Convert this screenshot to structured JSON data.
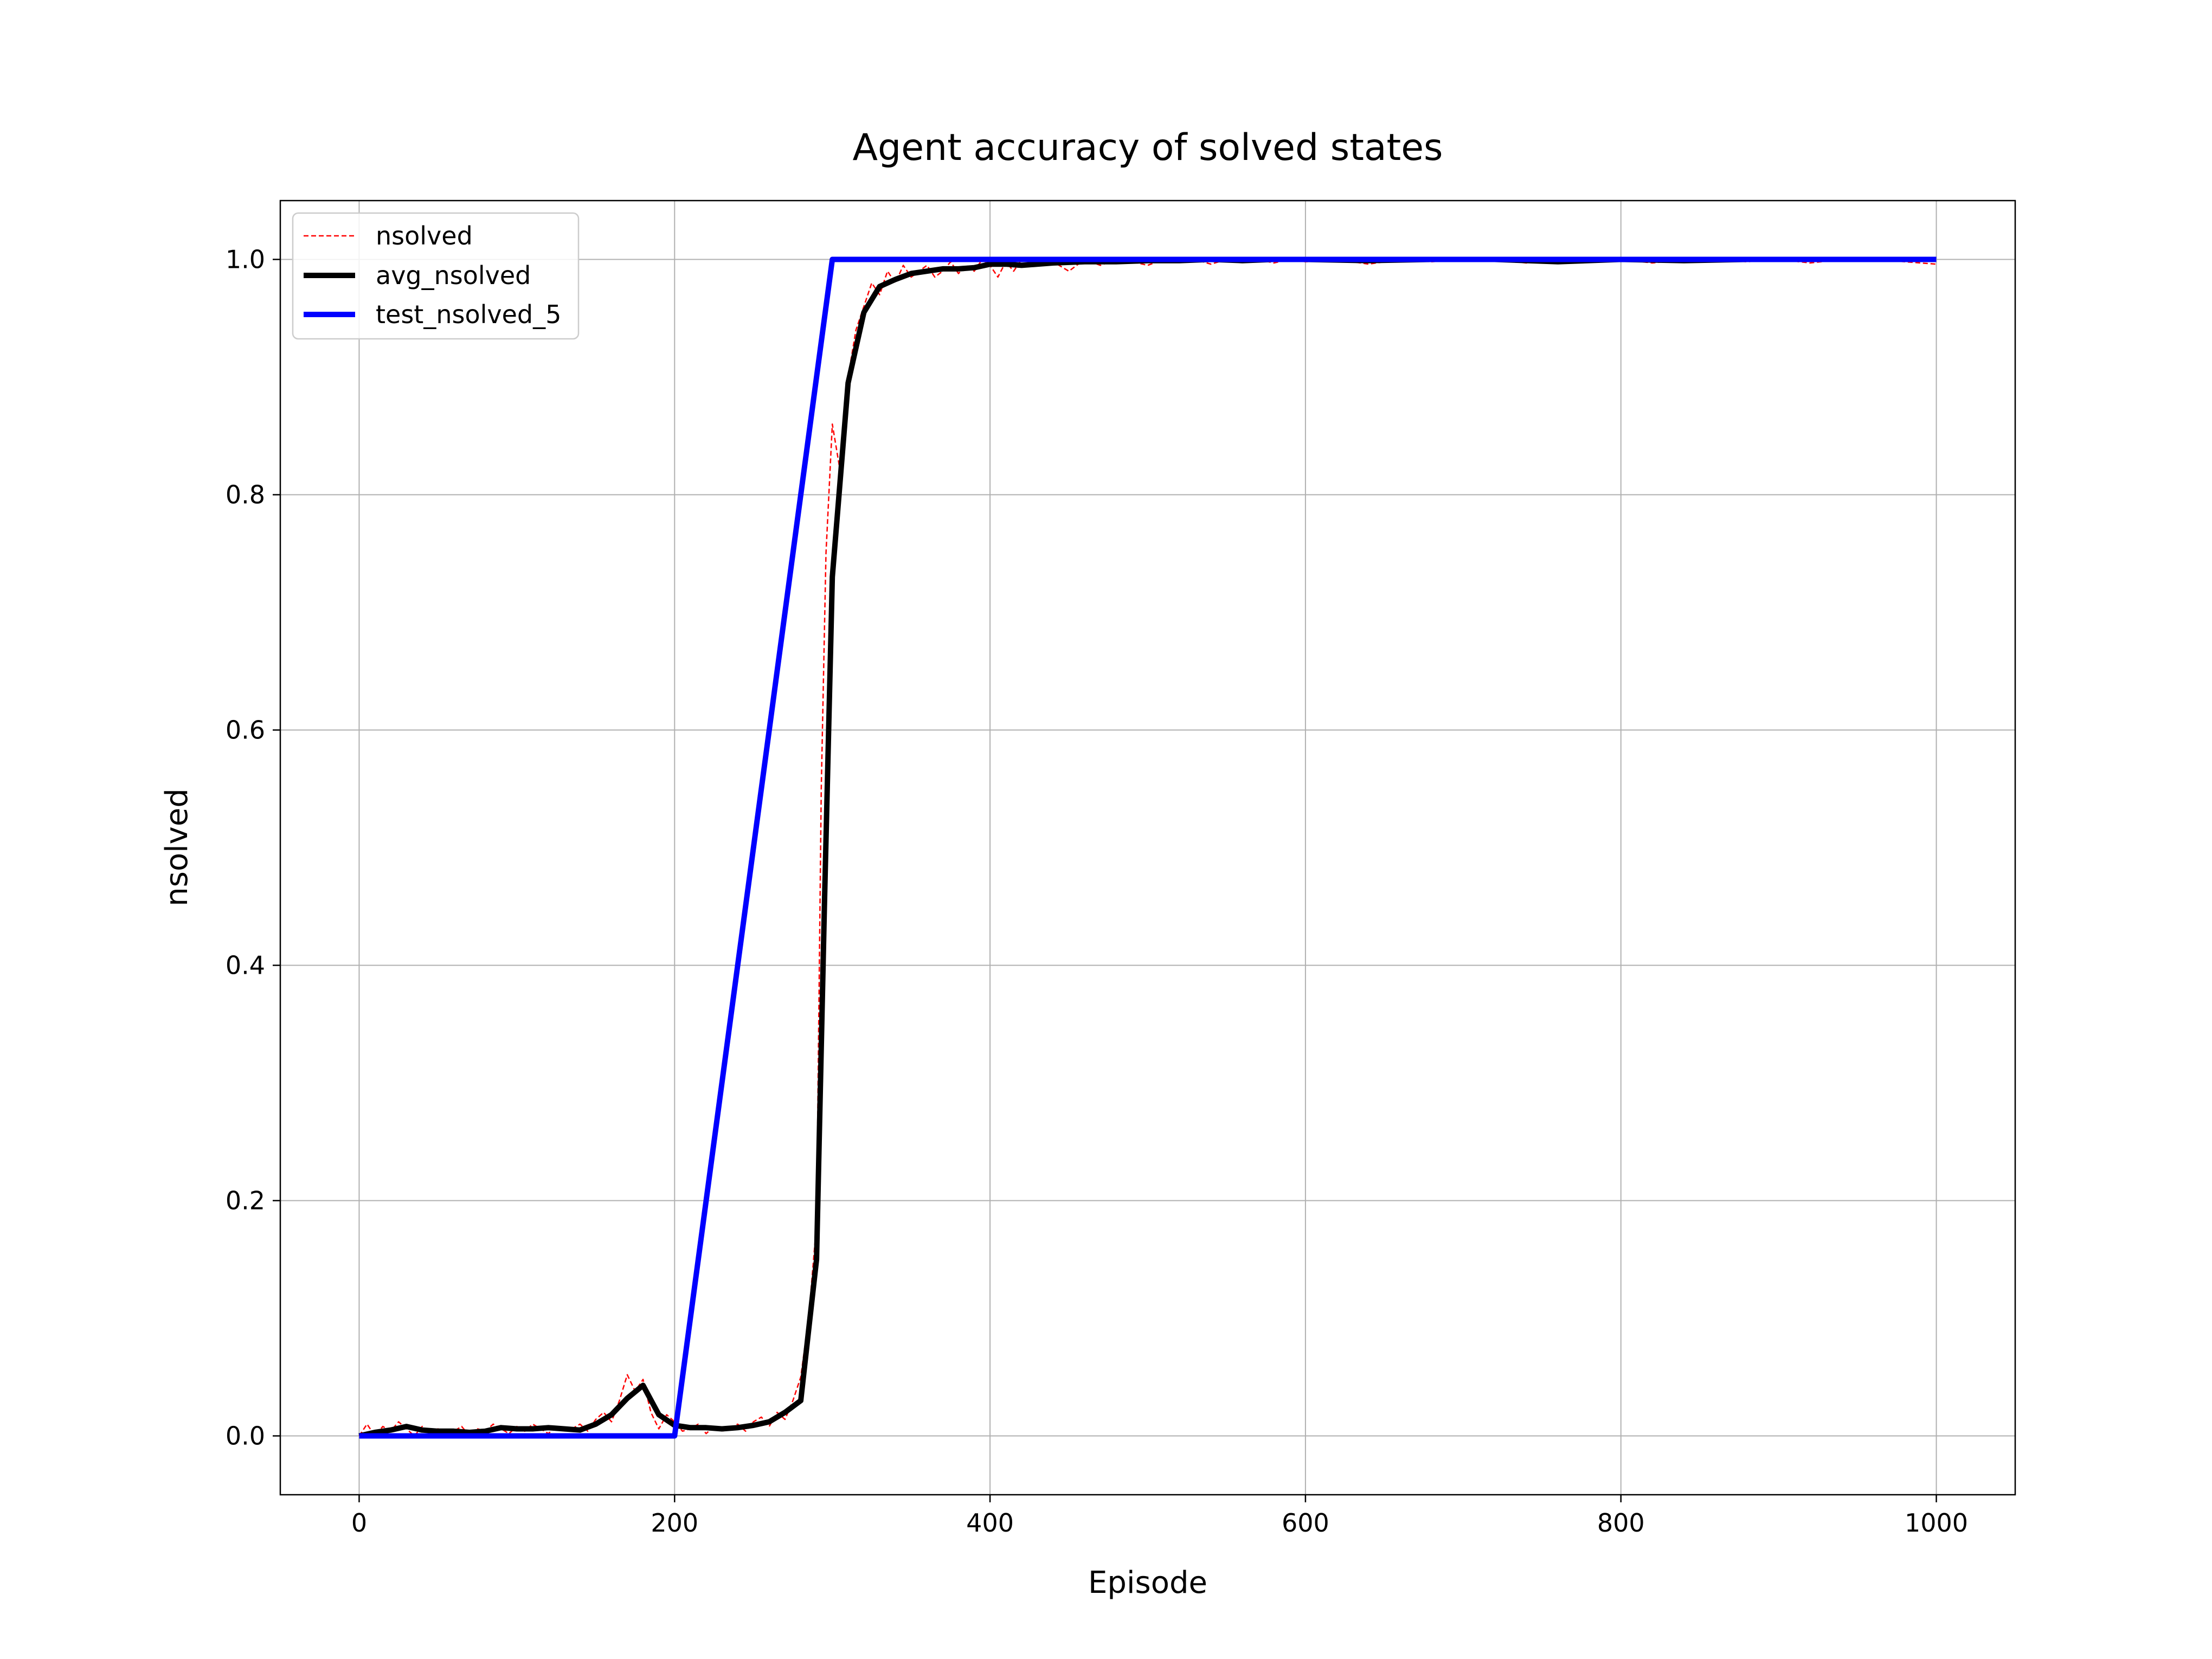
{
  "chart_data": {
    "type": "line",
    "title": "Agent accuracy of solved states",
    "xlabel": "Episode",
    "ylabel": "nsolved",
    "xlim": [
      -50,
      1050
    ],
    "ylim": [
      -0.05,
      1.05
    ],
    "xticks": [
      0,
      200,
      400,
      600,
      800,
      1000
    ],
    "yticks": [
      0.0,
      0.2,
      0.4,
      0.6,
      0.8,
      1.0
    ],
    "xtick_labels": [
      "0",
      "200",
      "400",
      "600",
      "800",
      "1000"
    ],
    "ytick_labels": [
      "0.0",
      "0.2",
      "0.4",
      "0.6",
      "0.8",
      "1.0"
    ],
    "grid": true,
    "legend_position": "upper-left",
    "series": [
      {
        "name": "nsolved",
        "color": "#ff0000",
        "style": "dashed",
        "x": [
          0,
          5,
          10,
          15,
          20,
          25,
          30,
          35,
          40,
          45,
          50,
          55,
          60,
          65,
          70,
          75,
          80,
          85,
          90,
          95,
          100,
          105,
          110,
          115,
          120,
          125,
          130,
          135,
          140,
          145,
          150,
          155,
          160,
          165,
          170,
          175,
          180,
          185,
          190,
          195,
          200,
          205,
          210,
          215,
          220,
          225,
          230,
          235,
          240,
          245,
          250,
          255,
          260,
          265,
          270,
          275,
          280,
          285,
          290,
          293,
          296,
          300,
          305,
          310,
          315,
          320,
          325,
          330,
          335,
          340,
          345,
          350,
          355,
          360,
          365,
          370,
          375,
          380,
          385,
          390,
          395,
          400,
          405,
          410,
          415,
          420,
          430,
          440,
          450,
          460,
          470,
          480,
          490,
          500,
          510,
          520,
          530,
          540,
          550,
          560,
          570,
          580,
          590,
          600,
          620,
          640,
          660,
          680,
          700,
          720,
          740,
          760,
          780,
          800,
          820,
          840,
          860,
          880,
          900,
          920,
          940,
          960,
          980,
          1000
        ],
        "y": [
          0.0,
          0.01,
          0.0,
          0.008,
          0.004,
          0.012,
          0.006,
          0.0,
          0.008,
          0.002,
          0.006,
          0.0,
          0.004,
          0.008,
          0.0,
          0.006,
          0.004,
          0.01,
          0.006,
          0.002,
          0.008,
          0.004,
          0.01,
          0.006,
          0.002,
          0.008,
          0.004,
          0.006,
          0.01,
          0.004,
          0.014,
          0.02,
          0.012,
          0.03,
          0.052,
          0.038,
          0.048,
          0.02,
          0.006,
          0.018,
          0.012,
          0.004,
          0.006,
          0.01,
          0.002,
          0.008,
          0.004,
          0.006,
          0.01,
          0.004,
          0.012,
          0.016,
          0.008,
          0.02,
          0.014,
          0.03,
          0.05,
          0.1,
          0.18,
          0.55,
          0.75,
          0.86,
          0.82,
          0.9,
          0.94,
          0.96,
          0.98,
          0.97,
          0.99,
          0.98,
          0.995,
          0.985,
          0.99,
          0.995,
          0.985,
          0.99,
          0.998,
          0.988,
          0.995,
          0.99,
          1.0,
          0.995,
          0.985,
          0.998,
          0.99,
          1.0,
          0.995,
          0.998,
          0.99,
          1.0,
          0.995,
          1.0,
          0.998,
          0.995,
          1.0,
          0.998,
          1.0,
          0.996,
          1.0,
          0.998,
          1.0,
          0.997,
          1.0,
          0.998,
          1.0,
          0.996,
          1.0,
          0.998,
          1.0,
          1.0,
          0.997,
          1.0,
          0.998,
          1.0,
          0.997,
          1.0,
          1.0,
          0.998,
          1.0,
          0.997,
          1.0,
          1.0,
          0.998,
          0.996
        ]
      },
      {
        "name": "avg_nsolved",
        "color": "#000000",
        "style": "solid",
        "x": [
          0,
          10,
          20,
          30,
          40,
          50,
          60,
          70,
          80,
          90,
          100,
          110,
          120,
          130,
          140,
          150,
          160,
          170,
          180,
          190,
          200,
          210,
          220,
          230,
          240,
          250,
          260,
          270,
          280,
          285,
          290,
          295,
          300,
          310,
          320,
          330,
          340,
          350,
          360,
          370,
          380,
          390,
          400,
          410,
          420,
          440,
          460,
          480,
          500,
          520,
          540,
          560,
          580,
          600,
          640,
          680,
          720,
          760,
          800,
          840,
          880,
          920,
          960,
          1000
        ],
        "y": [
          0.0,
          0.003,
          0.005,
          0.008,
          0.005,
          0.004,
          0.004,
          0.003,
          0.004,
          0.007,
          0.006,
          0.006,
          0.007,
          0.006,
          0.005,
          0.01,
          0.018,
          0.032,
          0.043,
          0.018,
          0.009,
          0.007,
          0.007,
          0.006,
          0.007,
          0.009,
          0.012,
          0.02,
          0.03,
          0.09,
          0.15,
          0.45,
          0.73,
          0.895,
          0.955,
          0.977,
          0.983,
          0.988,
          0.99,
          0.992,
          0.992,
          0.993,
          0.996,
          0.996,
          0.995,
          0.997,
          0.998,
          0.998,
          0.999,
          0.999,
          1.0,
          0.999,
          1.0,
          1.0,
          0.999,
          1.0,
          1.0,
          0.998,
          1.0,
          0.999,
          1.0,
          1.0,
          1.0,
          1.0
        ]
      },
      {
        "name": "test_nsolved_5",
        "color": "#0000ff",
        "style": "solid",
        "x": [
          0,
          200,
          300,
          1000
        ],
        "y": [
          0.0,
          0.0,
          1.0,
          1.0
        ]
      }
    ]
  }
}
